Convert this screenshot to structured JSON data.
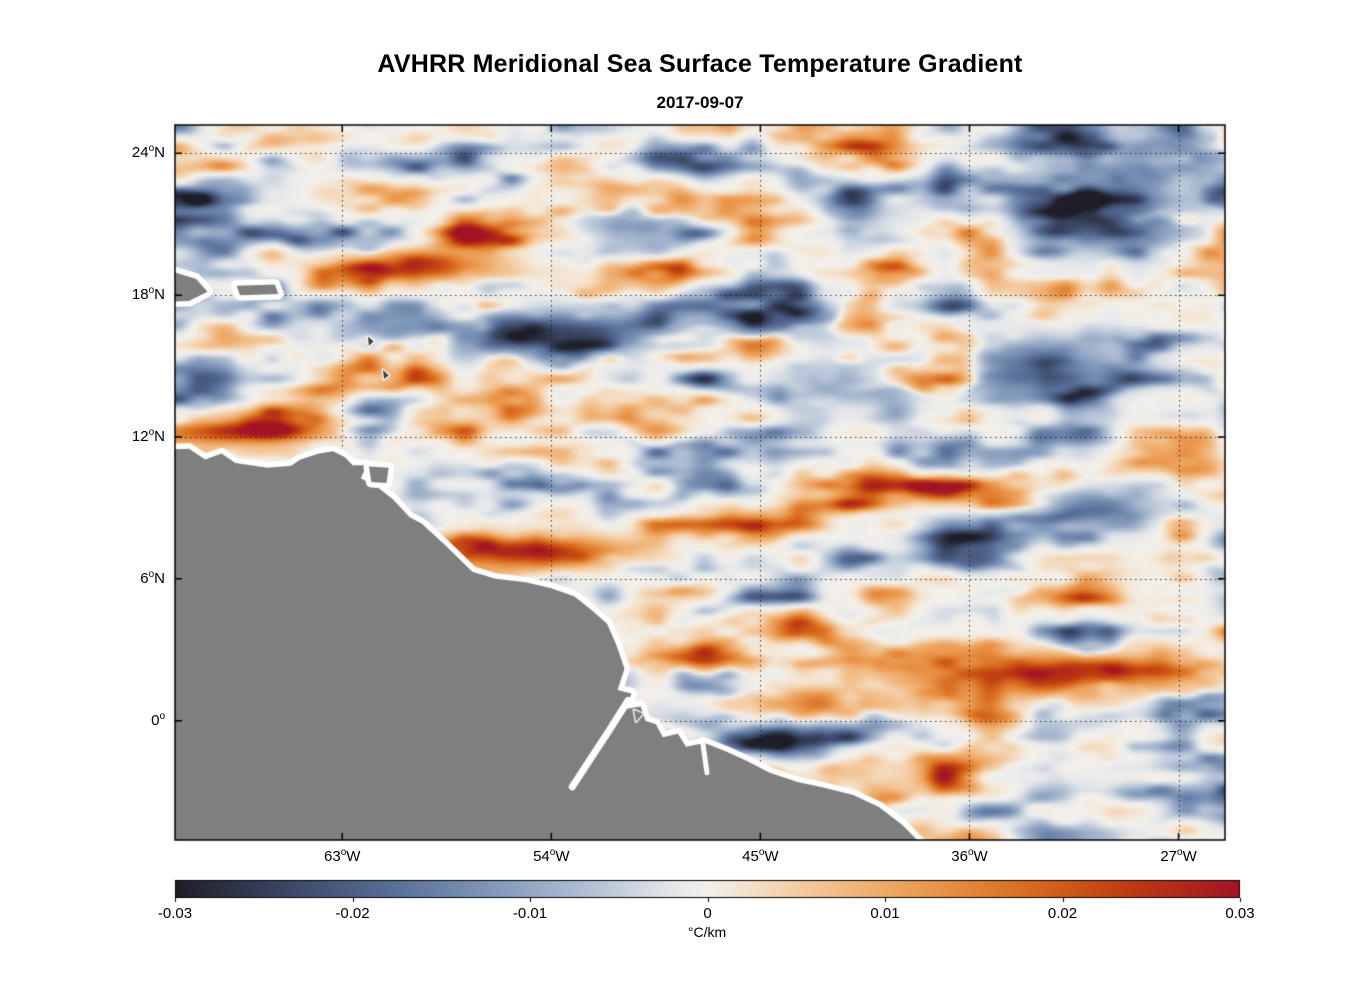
{
  "title": "AVHRR Meridional Sea Surface Temperature Gradient",
  "subtitle": "2017-09-07",
  "chart_data": {
    "type": "heatmap",
    "title": "AVHRR Meridional Sea Surface Temperature Gradient",
    "date": "2017-09-07",
    "units": "°C/km",
    "value_range": [
      -0.03,
      0.03
    ],
    "grid": "dotted",
    "grid_color": "#1e1e1e",
    "extent": {
      "lon_min": -70.2,
      "lon_max": -25.0,
      "lat_min": -5.05,
      "lat_max": 25.2
    },
    "x_ticks": [
      {
        "value": 63,
        "hem": "W",
        "label": "63°W",
        "lon": -63
      },
      {
        "value": 54,
        "hem": "W",
        "label": "54°W",
        "lon": -54
      },
      {
        "value": 45,
        "hem": "W",
        "label": "45°W",
        "lon": -45
      },
      {
        "value": 36,
        "hem": "W",
        "label": "36°W",
        "lon": -36
      },
      {
        "value": 27,
        "hem": "W",
        "label": "27°W",
        "lon": -27
      }
    ],
    "y_ticks": [
      {
        "value": 24,
        "hem": "N",
        "label": "24°N",
        "lat": 24
      },
      {
        "value": 18,
        "hem": "N",
        "label": "18°N",
        "lat": 18
      },
      {
        "value": 12,
        "hem": "N",
        "label": "12°N",
        "lat": 12
      },
      {
        "value": 6,
        "hem": "N",
        "label": "6°N",
        "lat": 6
      },
      {
        "value": 0,
        "hem": "",
        "label": "0°",
        "lat": 0
      }
    ],
    "colorbar": {
      "label": "°C/km",
      "tick_values": [
        -0.03,
        -0.02,
        -0.01,
        0,
        0.01,
        0.02,
        0.03
      ],
      "tick_labels": [
        "-0.03",
        "-0.02",
        "-0.01",
        "0",
        "0.01",
        "0.02",
        "0.03"
      ],
      "stops": [
        {
          "v": -0.03,
          "c": "#1e1e28"
        },
        {
          "v": -0.024,
          "c": "#3a4563"
        },
        {
          "v": -0.018,
          "c": "#566d96"
        },
        {
          "v": -0.012,
          "c": "#8299bb"
        },
        {
          "v": -0.006,
          "c": "#b9c6d8"
        },
        {
          "v": -0.002,
          "c": "#e4e7ea"
        },
        {
          "v": 0.0,
          "c": "#f3f0ea"
        },
        {
          "v": 0.002,
          "c": "#f4e3cf"
        },
        {
          "v": 0.006,
          "c": "#f3c596"
        },
        {
          "v": 0.012,
          "c": "#ec9b51"
        },
        {
          "v": 0.018,
          "c": "#d96c1e"
        },
        {
          "v": 0.024,
          "c": "#bd3a10"
        },
        {
          "v": 0.03,
          "c": "#a31326"
        }
      ]
    },
    "land": {
      "fill": "#7f7f7f",
      "outline": "#ffffff",
      "polygons": [
        {
          "name": "mainland-south-america",
          "pts": [
            [
              -71.5,
              11.45
            ],
            [
              -69.6,
              11.5
            ],
            [
              -68.9,
              11.05
            ],
            [
              -68.2,
              11.3
            ],
            [
              -67.6,
              10.9
            ],
            [
              -66.2,
              10.7
            ],
            [
              -65.2,
              10.78
            ],
            [
              -64.8,
              11.05
            ],
            [
              -64.0,
              11.3
            ],
            [
              -63.4,
              11.4
            ],
            [
              -62.9,
              11.15
            ],
            [
              -62.55,
              10.8
            ],
            [
              -61.95,
              10.8
            ],
            [
              -62.2,
              10.25
            ],
            [
              -61.5,
              9.9
            ],
            [
              -60.8,
              9.35
            ],
            [
              -60.1,
              8.6
            ],
            [
              -59.6,
              8.35
            ],
            [
              -58.6,
              7.45
            ],
            [
              -57.4,
              6.3
            ],
            [
              -56.4,
              6.0
            ],
            [
              -55.1,
              5.85
            ],
            [
              -54.0,
              5.6
            ],
            [
              -53.0,
              5.25
            ],
            [
              -52.3,
              4.7
            ],
            [
              -51.6,
              4.1
            ],
            [
              -51.2,
              3.2
            ],
            [
              -50.85,
              2.2
            ],
            [
              -51.15,
              1.3
            ],
            [
              -50.55,
              1.15
            ],
            [
              -50.78,
              0.5
            ],
            [
              -50.15,
              0.6
            ],
            [
              -49.95,
              0.0
            ],
            [
              -49.5,
              -0.15
            ],
            [
              -49.2,
              -0.7
            ],
            [
              -48.55,
              -0.55
            ],
            [
              -48.2,
              -1.1
            ],
            [
              -47.4,
              -0.95
            ],
            [
              -46.5,
              -1.3
            ],
            [
              -45.6,
              -1.7
            ],
            [
              -44.6,
              -2.2
            ],
            [
              -43.4,
              -2.6
            ],
            [
              -42.2,
              -2.85
            ],
            [
              -41.0,
              -3.15
            ],
            [
              -39.9,
              -3.65
            ],
            [
              -38.9,
              -4.4
            ],
            [
              -38.1,
              -5.2
            ],
            [
              -37.5,
              -5.9
            ],
            [
              -71.5,
              -5.9
            ]
          ]
        },
        {
          "name": "hispaniola-edge",
          "pts": [
            [
              -71.0,
              19.2
            ],
            [
              -69.3,
              18.7
            ],
            [
              -68.8,
              18.15
            ],
            [
              -69.6,
              17.75
            ],
            [
              -71.0,
              17.7
            ]
          ]
        },
        {
          "name": "puerto-rico",
          "pts": [
            [
              -67.55,
              18.4
            ],
            [
              -65.9,
              18.45
            ],
            [
              -65.75,
              18.05
            ],
            [
              -67.4,
              18.0
            ]
          ]
        },
        {
          "name": "trinidad",
          "pts": [
            [
              -61.85,
              10.75
            ],
            [
              -61.0,
              10.7
            ],
            [
              -61.1,
              10.05
            ],
            [
              -61.75,
              10.1
            ]
          ]
        }
      ],
      "specks": [
        {
          "name": "guadeloupe",
          "fill": "#3c3c3c",
          "pts": [
            [
              -61.9,
              16.25
            ],
            [
              -61.65,
              16.05
            ],
            [
              -61.85,
              15.85
            ]
          ]
        },
        {
          "name": "martinique",
          "fill": "#3c3c3c",
          "pts": [
            [
              -61.25,
              14.85
            ],
            [
              -61.0,
              14.6
            ],
            [
              -61.2,
              14.45
            ]
          ]
        },
        {
          "name": "amazon-mouth-island",
          "fill": "#7f7f7f",
          "pts": [
            [
              -50.45,
              0.45
            ],
            [
              -50.05,
              0.3
            ],
            [
              -50.35,
              -0.05
            ]
          ]
        }
      ],
      "rivers": [
        {
          "w": 7,
          "pts": [
            [
              -50.7,
              0.85
            ],
            [
              -51.5,
              -0.4
            ],
            [
              -52.3,
              -1.6
            ],
            [
              -53.1,
              -2.8
            ]
          ]
        },
        {
          "w": 5,
          "pts": [
            [
              -47.5,
              -0.8
            ],
            [
              -47.3,
              -2.2
            ]
          ]
        }
      ]
    },
    "features": [
      {
        "lon": -55.5,
        "lat": 16.4,
        "rx": 6.5,
        "ry": 0.9,
        "v": -0.026
      },
      {
        "lon": -33.5,
        "lat": 14.9,
        "rx": 4.5,
        "ry": 1.2,
        "v": -0.017
      },
      {
        "lon": -29.8,
        "lat": 21.3,
        "rx": 3.2,
        "ry": 1.4,
        "v": -0.02
      },
      {
        "lon": -27.5,
        "lat": 23.8,
        "rx": 2.5,
        "ry": 1.2,
        "v": -0.018
      },
      {
        "lon": -44.0,
        "lat": 16.9,
        "rx": 3.0,
        "ry": 0.7,
        "v": -0.018
      },
      {
        "lon": -41.0,
        "lat": 14.3,
        "rx": 2.2,
        "ry": 0.8,
        "v": -0.015
      },
      {
        "lon": -36.2,
        "lat": 7.8,
        "rx": 1.8,
        "ry": 0.7,
        "v": -0.02
      },
      {
        "lon": -30.5,
        "lat": 9.0,
        "rx": 2.5,
        "ry": 0.8,
        "v": -0.016
      },
      {
        "lon": -49.0,
        "lat": -1.4,
        "rx": 2.2,
        "ry": 0.5,
        "v": -0.02
      },
      {
        "lon": -50.5,
        "lat": 21.0,
        "rx": 2.0,
        "ry": 0.8,
        "v": -0.014
      },
      {
        "lon": -67.3,
        "lat": 12.25,
        "rx": 3.6,
        "ry": 0.55,
        "v": 0.027
      },
      {
        "lon": -59.6,
        "lat": 19.2,
        "rx": 3.2,
        "ry": 0.6,
        "v": 0.022
      },
      {
        "lon": -55.3,
        "lat": 7.15,
        "rx": 4.2,
        "ry": 0.65,
        "v": 0.028
      },
      {
        "lon": -47.6,
        "lat": 2.6,
        "rx": 2.6,
        "ry": 0.5,
        "v": 0.024
      },
      {
        "lon": -42.4,
        "lat": 0.7,
        "rx": 2.9,
        "ry": 0.6,
        "v": 0.022
      },
      {
        "lon": -31.8,
        "lat": 1.9,
        "rx": 4.6,
        "ry": 0.9,
        "v": 0.026
      }
    ],
    "noise": {
      "octaves": [
        {
          "wx": 33,
          "wy": 12,
          "amp": 1.0,
          "seed": 101
        },
        {
          "wx": 16,
          "wy": 6,
          "amp": 0.55,
          "seed": 202
        },
        {
          "wx": 8,
          "wy": 3.5,
          "amp": 0.3,
          "seed": 303
        }
      ],
      "exponent": 1.6,
      "scale": 0.052
    }
  }
}
